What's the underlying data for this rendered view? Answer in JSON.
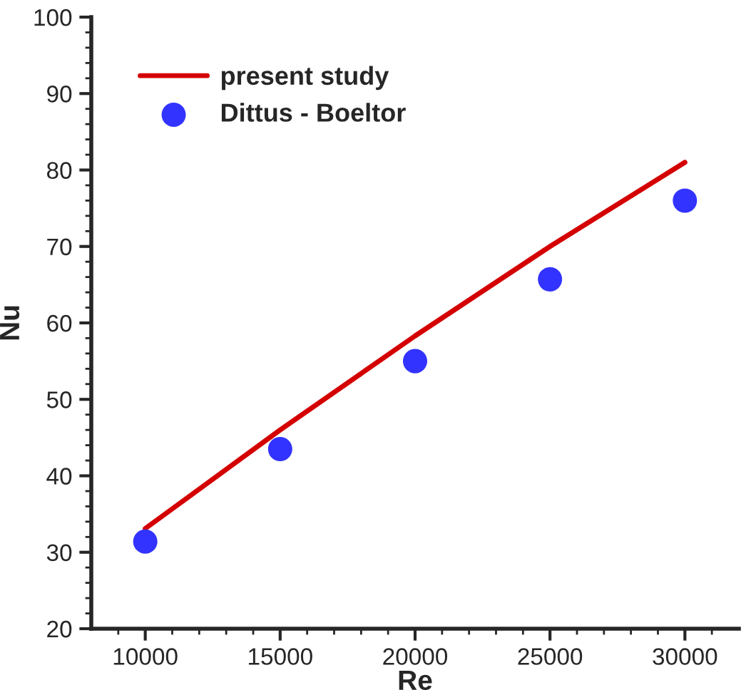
{
  "chart_data": {
    "type": "line",
    "xlabel": "Re",
    "ylabel": "Nu",
    "x": [
      10000,
      15000,
      20000,
      25000,
      30000
    ],
    "series": [
      {
        "name": "present study",
        "type": "line",
        "color": "#d40000",
        "marker": "none",
        "values": [
          33.1,
          46.0,
          58.3,
          70.0,
          81.0
        ]
      },
      {
        "name": "Dittus - Boeltor",
        "type": "scatter",
        "color": "#3333ff",
        "marker": "circle",
        "values": [
          31.4,
          43.5,
          55.0,
          65.7,
          76.0
        ]
      }
    ],
    "xlim": [
      8000,
      32000
    ],
    "xticks": [
      {
        "value": 9000,
        "label": null
      },
      10000,
      {
        "value": 11000,
        "label": null
      },
      {
        "value": 12000,
        "label": null
      },
      {
        "value": 13000,
        "label": null
      },
      {
        "value": 14000,
        "label": null
      },
      15000,
      {
        "value": 16000,
        "label": null
      },
      {
        "value": 17000,
        "label": null
      },
      {
        "value": 18000,
        "label": null
      },
      {
        "value": 19000,
        "label": null
      },
      20000,
      {
        "value": 21000,
        "label": null
      },
      {
        "value": 22000,
        "label": null
      },
      {
        "value": 23000,
        "label": null
      },
      {
        "value": 24000,
        "label": null
      },
      25000,
      {
        "value": 26000,
        "label": null
      },
      {
        "value": 27000,
        "label": null
      },
      {
        "value": 28000,
        "label": null
      },
      {
        "value": 29000,
        "label": null
      },
      30000,
      {
        "value": 31000,
        "label": null
      }
    ],
    "ylim": [
      20,
      100
    ],
    "yticks": [
      20,
      {
        "value": 22,
        "label": null
      },
      {
        "value": 24,
        "label": null
      },
      {
        "value": 26,
        "label": null
      },
      {
        "value": 28,
        "label": null
      },
      30,
      {
        "value": 32,
        "label": null
      },
      {
        "value": 34,
        "label": null
      },
      {
        "value": 36,
        "label": null
      },
      {
        "value": 38,
        "label": null
      },
      40,
      {
        "value": 42,
        "label": null
      },
      {
        "value": 44,
        "label": null
      },
      {
        "value": 46,
        "label": null
      },
      {
        "value": 48,
        "label": null
      },
      50,
      {
        "value": 52,
        "label": null
      },
      {
        "value": 54,
        "label": null
      },
      {
        "value": 56,
        "label": null
      },
      {
        "value": 58,
        "label": null
      },
      60,
      {
        "value": 62,
        "label": null
      },
      {
        "value": 64,
        "label": null
      },
      {
        "value": 66,
        "label": null
      },
      {
        "value": 68,
        "label": null
      },
      70,
      {
        "value": 72,
        "label": null
      },
      {
        "value": 74,
        "label": null
      },
      {
        "value": 76,
        "label": null
      },
      {
        "value": 78,
        "label": null
      },
      80,
      {
        "value": 82,
        "label": null
      },
      {
        "value": 84,
        "label": null
      },
      {
        "value": 86,
        "label": null
      },
      {
        "value": 88,
        "label": null
      },
      90,
      {
        "value": 92,
        "label": null
      },
      {
        "value": 94,
        "label": null
      },
      {
        "value": 96,
        "label": null
      },
      {
        "value": 98,
        "label": null
      },
      100
    ],
    "grid": false,
    "legend": "top left"
  }
}
